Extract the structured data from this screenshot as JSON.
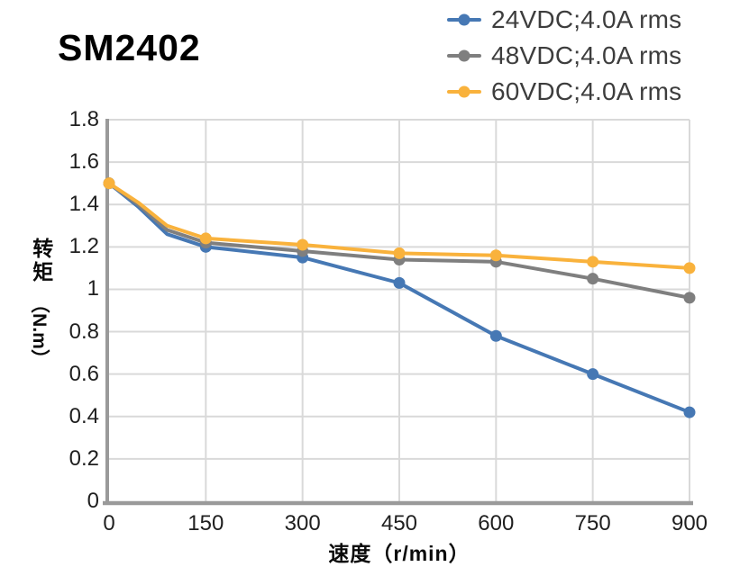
{
  "title": "SM2402",
  "legend": {
    "items": [
      {
        "label": "24VDC;4.0A rms",
        "color": "#4678B4"
      },
      {
        "label": "48VDC;4.0A rms",
        "color": "#7F7F7F"
      },
      {
        "label": "60VDC;4.0A rms",
        "color": "#F9B23C"
      }
    ]
  },
  "axes": {
    "xlabel": "速度（r/min）",
    "ylabel": "转矩（N.m）",
    "ylabel_cjk": "转矩",
    "ylabel_unit": "（N.m）"
  },
  "colors": {
    "grid": "#D9D9D9",
    "axis": "#9A9A9A",
    "tick_text": "#1F1F1F",
    "legend_text": "#3D3D3D"
  },
  "chart_data": {
    "type": "line",
    "title": "SM2402",
    "xlabel": "速度（r/min）",
    "ylabel": "转矩（N.m）",
    "xlim": [
      0,
      900
    ],
    "ylim": [
      0,
      1.8
    ],
    "grid": true,
    "legend_position": "top-right",
    "x_ticks": [
      0,
      150,
      300,
      450,
      600,
      750,
      900
    ],
    "y_ticks": [
      0,
      0.2,
      0.4,
      0.6,
      0.8,
      1,
      1.2,
      1.4,
      1.6,
      1.8
    ],
    "y_tick_labels": [
      "0",
      "0.2",
      "0.4",
      "0.6",
      "0.8",
      "1",
      "1.2",
      "1.4",
      "1.6",
      "1.8"
    ],
    "x": [
      0,
      45,
      90,
      150,
      300,
      450,
      600,
      750,
      900
    ],
    "marker_x": [
      0,
      150,
      300,
      450,
      600,
      750,
      900
    ],
    "series": [
      {
        "name": "24VDC;4.0A rms",
        "color": "#4678B4",
        "values": [
          1.5,
          1.39,
          1.26,
          1.2,
          1.15,
          1.03,
          0.78,
          0.6,
          0.42
        ]
      },
      {
        "name": "48VDC;4.0A rms",
        "color": "#7F7F7F",
        "values": [
          1.5,
          1.4,
          1.28,
          1.22,
          1.18,
          1.14,
          1.13,
          1.05,
          0.96
        ]
      },
      {
        "name": "60VDC;4.0A rms",
        "color": "#F9B23C",
        "values": [
          1.5,
          1.41,
          1.3,
          1.24,
          1.21,
          1.17,
          1.16,
          1.13,
          1.1
        ]
      }
    ]
  }
}
